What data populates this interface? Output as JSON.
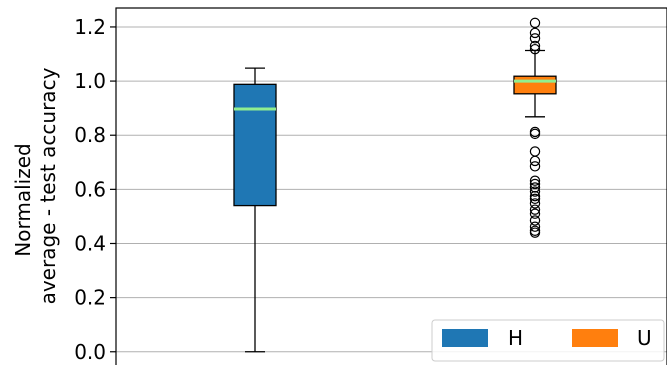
{
  "chart_data": {
    "type": "box",
    "ylabel_lines": [
      "Normalized",
      "average - test accuracy"
    ],
    "ylim": [
      -0.06,
      1.27
    ],
    "yticks": [
      0.0,
      0.2,
      0.4,
      0.6,
      0.8,
      1.0,
      1.2
    ],
    "ytick_labels": [
      "0.0",
      "0.2",
      "0.4",
      "0.6",
      "0.8",
      "1.0",
      "1.2"
    ],
    "grid": "y",
    "legend_position": "bottom-right",
    "series": [
      {
        "name": "H",
        "color": "#1f77b4",
        "whisker_low": 0.0,
        "q1": 0.54,
        "median": 0.897,
        "q3": 0.988,
        "whisker_high": 1.048,
        "outliers": []
      },
      {
        "name": "U",
        "color": "#ff7f0e",
        "whisker_low": 0.868,
        "q1": 0.953,
        "median": 1.0,
        "q3": 1.018,
        "whisker_high": 1.113,
        "outliers": [
          1.215,
          1.178,
          1.158,
          1.13,
          1.118,
          0.812,
          0.805,
          0.74,
          0.705,
          0.685,
          0.632,
          0.62,
          0.607,
          0.592,
          0.575,
          0.565,
          0.548,
          0.525,
          0.51,
          0.485,
          0.462,
          0.447,
          0.44
        ]
      }
    ],
    "median_color": "#90ee90"
  }
}
